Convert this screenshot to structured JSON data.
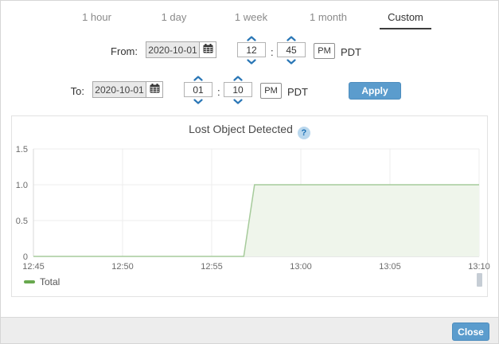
{
  "tabs": {
    "items": [
      {
        "label": "1 hour",
        "selected": false
      },
      {
        "label": "1 day",
        "selected": false
      },
      {
        "label": "1 week",
        "selected": false
      },
      {
        "label": "1 month",
        "selected": false
      },
      {
        "label": "Custom",
        "selected": true
      }
    ]
  },
  "from_row": {
    "label": "From:",
    "date": "2020-10-01",
    "hour": "12",
    "minute": "45",
    "meridiem": "PM",
    "timezone": "PDT"
  },
  "to_row": {
    "label": "To:",
    "date": "2020-10-01",
    "hour": "01",
    "minute": "10",
    "meridiem": "PM",
    "timezone": "PDT"
  },
  "misc": {
    "time_separator": ":"
  },
  "buttons": {
    "apply": "Apply",
    "close": "Close"
  },
  "chart": {
    "title": "Lost Object Detected",
    "help_label": "?"
  },
  "chart_data": {
    "type": "area",
    "title": "Lost Object Detected",
    "x_axis": {
      "unit": "time",
      "ticks": [
        {
          "label": "12:45",
          "minutes": 0
        },
        {
          "label": "12:50",
          "minutes": 5
        },
        {
          "label": "12:55",
          "minutes": 10
        },
        {
          "label": "13:00",
          "minutes": 15
        },
        {
          "label": "13:05",
          "minutes": 20
        },
        {
          "label": "13:10",
          "minutes": 25
        }
      ]
    },
    "y_axis": {
      "range": [
        0,
        1.5
      ],
      "ticks": [
        {
          "label": "0",
          "value": 0
        },
        {
          "label": "0.5",
          "value": 0.5
        },
        {
          "label": "1.0",
          "value": 1
        },
        {
          "label": "1.5",
          "value": 1.5
        }
      ]
    },
    "series": [
      {
        "name": "Total",
        "color": "#a6cb9b",
        "fill": "#eff5eb",
        "legend_color": "#68a84e",
        "points_minutes_value": [
          [
            0,
            0
          ],
          [
            11.8,
            0
          ],
          [
            12.4,
            1
          ],
          [
            25,
            1
          ]
        ]
      }
    ],
    "grid": true,
    "legend_position": "bottom-left"
  }
}
